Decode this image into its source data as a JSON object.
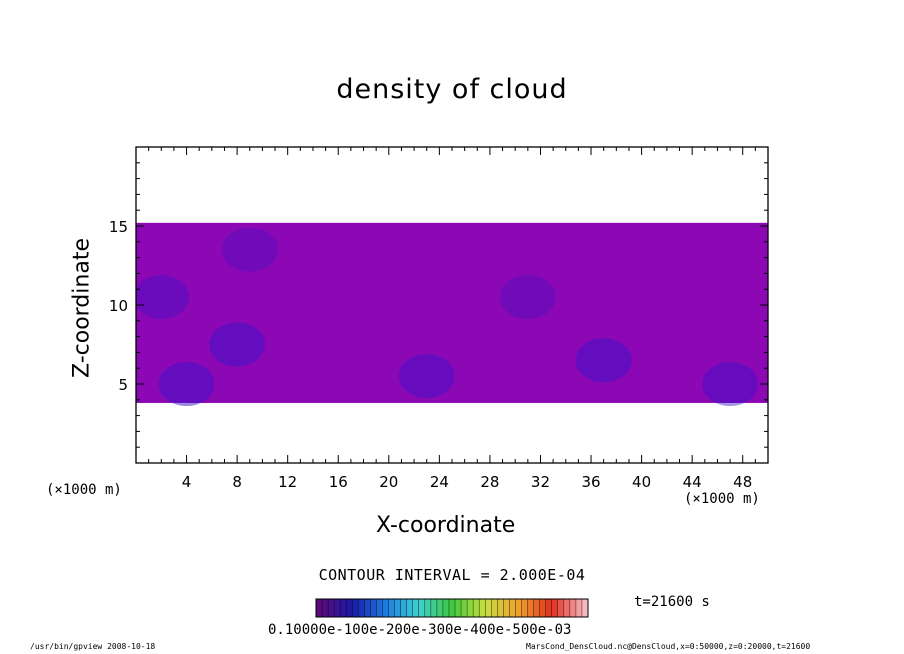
{
  "chart_data": {
    "type": "heatmap",
    "title": "density of cloud",
    "xlabel": "X-coordinate",
    "ylabel": "Z-coordinate",
    "x_unit": "(×1000 m)",
    "x_ticks": [
      4,
      8,
      12,
      16,
      20,
      24,
      28,
      32,
      36,
      40,
      44,
      48
    ],
    "y_ticks": [
      5,
      10,
      15
    ],
    "xlim": [
      0,
      50
    ],
    "ylim": [
      0,
      20
    ],
    "cloud_layer": {
      "z_bottom": 3.8,
      "z_top": 15.2
    },
    "dense_regions": [
      {
        "x": 8,
        "z": 7.5,
        "level": 0.9
      },
      {
        "x": 4,
        "z": 5.0,
        "level": 0.9
      },
      {
        "x": 9,
        "z": 13.5,
        "level": 0.6
      },
      {
        "x": 23,
        "z": 5.5,
        "level": 0.8
      },
      {
        "x": 31,
        "z": 10.5,
        "level": 0.6
      },
      {
        "x": 37,
        "z": 6.5,
        "level": 0.9
      },
      {
        "x": 47,
        "z": 5.0,
        "level": 0.8
      },
      {
        "x": 2,
        "z": 10.5,
        "level": 0.7
      }
    ],
    "colorbar": {
      "min": 0.0,
      "max": 0.0005,
      "tick_text": "0.10000e-100e-200e-300e-400e-500e-03",
      "colors": [
        "#5b0a78",
        "#1a1aa8",
        "#1e7ae0",
        "#3fd0d0",
        "#40c840",
        "#c8e040",
        "#f0a030",
        "#e03020",
        "#f8b8c0"
      ]
    },
    "contour_interval": "CONTOUR INTERVAL = 2.000E-04",
    "time": "t=21600 s",
    "grid": false
  },
  "footer": {
    "left": "/usr/bin/gpview   2008-10-18",
    "right": "MarsCond_DensCloud.nc@DensCloud,x=0:50000,z=0:20000,t=21600"
  },
  "colors": {
    "base_fill": "#8c08b4",
    "dense_fill": "#3a12c8",
    "background": "#ffffff"
  }
}
